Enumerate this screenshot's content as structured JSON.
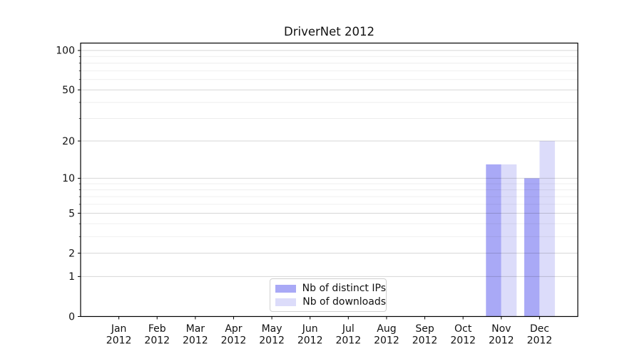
{
  "chart_data": {
    "type": "bar",
    "title": "DriverNet 2012",
    "x_months": [
      "Jan",
      "Feb",
      "Mar",
      "Apr",
      "May",
      "Jun",
      "Jul",
      "Aug",
      "Sep",
      "Oct",
      "Nov",
      "Dec"
    ],
    "x_year": "2012",
    "series": [
      {
        "name": "Nb of distinct IPs",
        "color": "#a9a9f6",
        "values": [
          null,
          null,
          null,
          null,
          null,
          null,
          null,
          null,
          null,
          null,
          13,
          10
        ]
      },
      {
        "name": "Nb of downloads",
        "color": "#dcdcfa",
        "values": [
          null,
          null,
          null,
          null,
          null,
          null,
          null,
          null,
          null,
          null,
          13,
          20
        ]
      }
    ],
    "yscale": "log1p",
    "ylim": [
      0,
      115
    ],
    "yticks": [
      0,
      1,
      2,
      5,
      10,
      20,
      50,
      100
    ],
    "minor_yticks": [
      3,
      4,
      6,
      7,
      8,
      9,
      30,
      40,
      60,
      70,
      80,
      90
    ],
    "grid": true,
    "legend_position": "lower center",
    "colors": {
      "major_grid": "#d6d6d6",
      "minor_grid": "#ededed",
      "spine": "#000000",
      "background": "#ffffff",
      "text": "#111111"
    }
  }
}
